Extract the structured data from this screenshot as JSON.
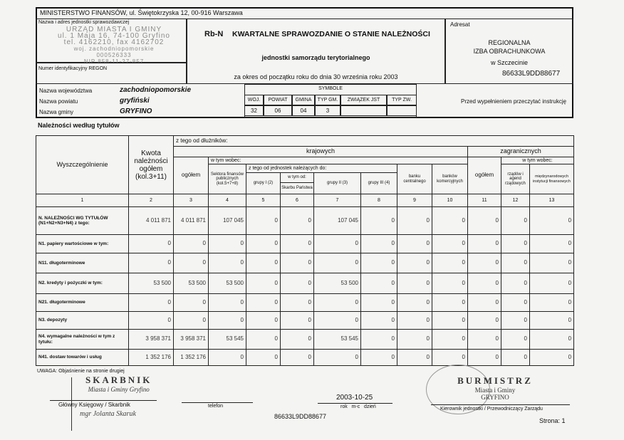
{
  "header": {
    "ministry": "MINISTERSTWO FINANSÓW, ul. Świętokrzyska 12, 00-916 Warszawa",
    "address_label": "Nazwa i adres jednostki sprawozdawczej",
    "stamp_lines": [
      "URZĄD MIASTA I GMINY",
      "ul. 1 Maja 16, 74-100 Gryfino",
      "tel. 4162210, fax 4162702",
      "woj. zachodniopomorskie",
      "000526333",
      "NIP 858-11-27-857"
    ],
    "regon_label": "Numer identyfikacyjny REGON",
    "form_code": "Rb-N",
    "title": "KWARTALNE SPRAWOZDANIE O STANIE NALEŻNOŚCI",
    "subtitle": "jednostki samorządu terytorialnego",
    "period": "za okres od początku roku do dnia 30 września roku 2003",
    "adresat_label": "Adresat",
    "adresat_lines": [
      "REGIONALNA",
      "IZBA OBRACHUNKOWA",
      "w Szczecinie"
    ],
    "adresat_code": "86633L9DD88677",
    "instruction": "Przed wypełnieniem przeczytać instrukcję"
  },
  "location": {
    "rows": [
      {
        "label": "Nazwa województwa",
        "value": "zachodniopomorskie"
      },
      {
        "label": "Nazwa powiatu",
        "value": "gryfiński"
      },
      {
        "label": "Nazwa gminy",
        "value": "GRYFINO"
      }
    ],
    "symbole_label": "SYMBOLE",
    "symbole_headers": [
      "WOJ.",
      "POWIAT",
      "GMINA",
      "TYP GM.",
      "ZWIĄZEK JST",
      "TYP ZW."
    ],
    "symbole_values": [
      "32",
      "06",
      "04",
      "3",
      "",
      ""
    ]
  },
  "section_title": "Należności według tytułów",
  "table": {
    "h_wysz": "Wyszczególnienie",
    "h_kwota": "Kwota należności ogółem (kol.3+11)",
    "h_ztego": "z tego od dłużników:",
    "h_kraj": "krajowych",
    "h_zagr": "zagranicznych",
    "h_wtym": "w tym wobec:",
    "h_ogolem": "ogółem",
    "h_sektor": "Sektora finansów publicznych (kol.5+7+8)",
    "h_jedn": "z tego od jednostek należących do:",
    "h_gr1": "grupy I (2)",
    "h_wtymod": "w tym od:",
    "h_skarb": "Skarbu Państwa",
    "h_gr2": "grupy II (3)",
    "h_gr3": "grupy III (4)",
    "h_bankc": "banku centralnego",
    "h_bankk": "banków komercyjnych",
    "h_rzad": "rządów i agend rządowych",
    "h_miedz": "międzynarodowych instytucji finansowych",
    "col_numbers": [
      "1",
      "2",
      "3",
      "4",
      "5",
      "6",
      "7",
      "8",
      "9",
      "10",
      "11",
      "12",
      "13"
    ],
    "rows": [
      {
        "label": "N. NALEŻNOŚCI WG TYTUŁÓW (N1+N2+N3+N4) z tego:",
        "values": [
          "4 011 871",
          "4 011 871",
          "107 045",
          "0",
          "0",
          "107 045",
          "0",
          "0",
          "0",
          "0",
          "0",
          "0"
        ]
      },
      {
        "label": "N1. papiery wartościowe w tym:",
        "values": [
          "0",
          "0",
          "0",
          "0",
          "0",
          "0",
          "0",
          "0",
          "0",
          "0",
          "0",
          "0"
        ]
      },
      {
        "label": "N11. długoterminowe",
        "values": [
          "0",
          "0",
          "0",
          "0",
          "0",
          "0",
          "0",
          "0",
          "0",
          "0",
          "0",
          "0"
        ]
      },
      {
        "label": "N2. kredyty i pożyczki w tym:",
        "values": [
          "53 500",
          "53 500",
          "53 500",
          "0",
          "0",
          "53 500",
          "0",
          "0",
          "0",
          "0",
          "0",
          "0"
        ]
      },
      {
        "label": "N21. długoterminowe",
        "values": [
          "0",
          "0",
          "0",
          "0",
          "0",
          "0",
          "0",
          "0",
          "0",
          "0",
          "0",
          "0"
        ]
      },
      {
        "label": "N3. depozyty",
        "values": [
          "0",
          "0",
          "0",
          "0",
          "0",
          "0",
          "0",
          "0",
          "0",
          "0",
          "0",
          "0"
        ]
      },
      {
        "label": "N4. wymagalne należności w tym z tytułu:",
        "values": [
          "3 958 371",
          "3 958 371",
          "53 545",
          "0",
          "0",
          "53 545",
          "0",
          "0",
          "0",
          "0",
          "0",
          "0"
        ]
      },
      {
        "label": "N41. dostaw towarów i usług",
        "values": [
          "1 352 176",
          "1 352 176",
          "0",
          "0",
          "0",
          "0",
          "0",
          "0",
          "0",
          "0",
          "0",
          "0"
        ]
      }
    ]
  },
  "footer": {
    "note": "UWAGA: Objaśnienie na stronie drugiej",
    "left_stamp": [
      "SKARBNIK",
      "Miasta i Gminy Gryfino"
    ],
    "left_label": "Główny Księgowy / Skarbnik",
    "left_sign": "mgr Jolanta Skaruk",
    "phone_label": "telefon",
    "date": "2003-10-25",
    "date_label": "rok   m-c   dzień",
    "code": "86633L9DD88677",
    "right_stamp": [
      "BURMISTRZ",
      "Miasta i Gminy",
      "GRYFINO"
    ],
    "right_label": "Kierownik jednostki / Przewodniczący Zarządu",
    "page": "Strona: 1"
  }
}
